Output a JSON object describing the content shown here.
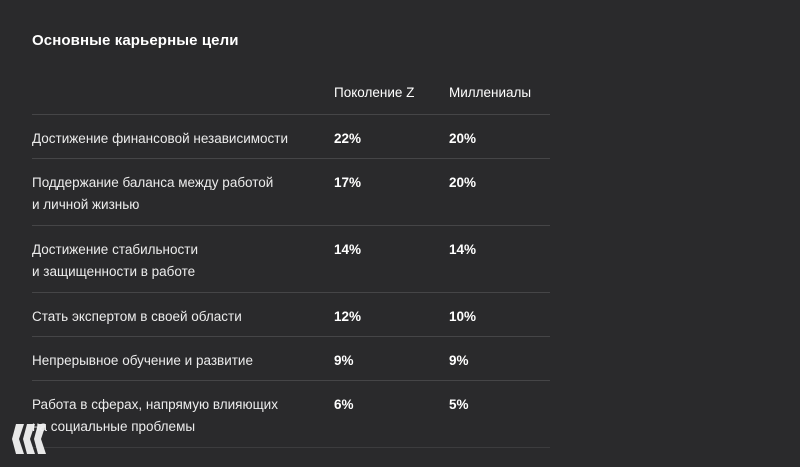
{
  "title": "Основные карьерные цели",
  "table": {
    "headers": [
      "Поколение Z",
      "Миллениалы"
    ],
    "rows": [
      {
        "goal": "Достижение финансовой независимости",
        "gen_z": "22%",
        "millennials": "20%"
      },
      {
        "goal": "Поддержание баланса между работой\nи личной жизнью",
        "gen_z": "17%",
        "millennials": "20%"
      },
      {
        "goal": "Достижение стабильности\nи защищенности в работе",
        "gen_z": "14%",
        "millennials": "14%"
      },
      {
        "goal": "Стать экспертом в своей области",
        "gen_z": "12%",
        "millennials": "10%"
      },
      {
        "goal": "Непрерывное обучение и развитие",
        "gen_z": "9%",
        "millennials": "9%"
      },
      {
        "goal": "Работа в сферах, напрямую влияющих\nна социальные проблемы",
        "gen_z": "6%",
        "millennials": "5%"
      }
    ]
  },
  "logo": {
    "icon": "habr-logo-icon",
    "color": "#f2f2f2"
  }
}
